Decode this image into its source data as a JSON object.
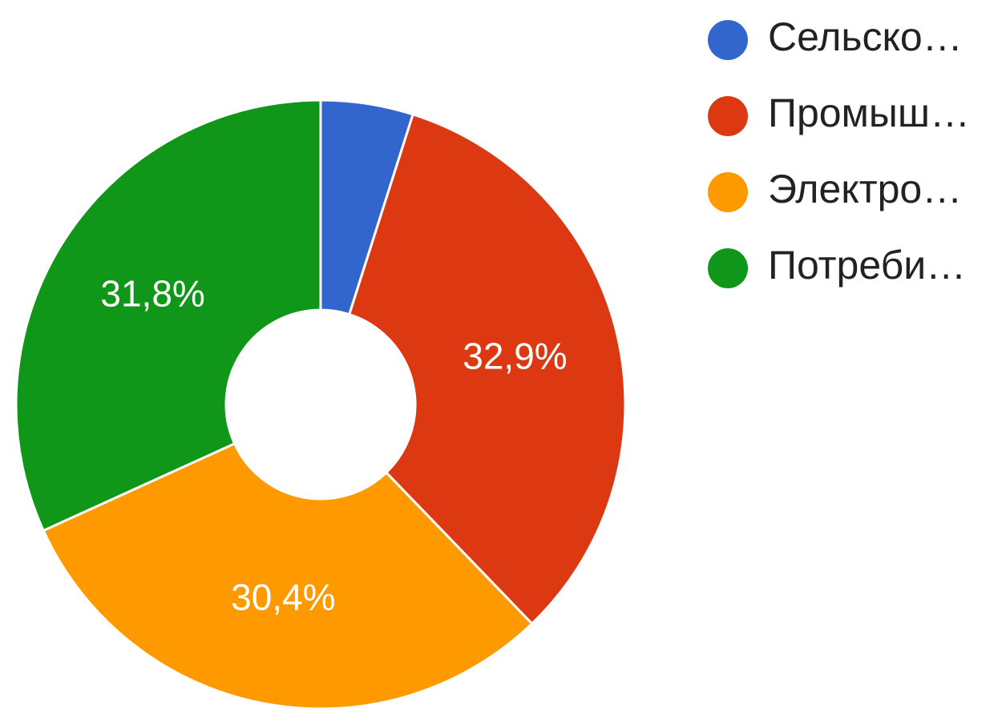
{
  "chart_data": {
    "type": "pie",
    "categories": [
      "Сельско…",
      "Промыш…",
      "Электро…",
      "Потреби…"
    ],
    "values": [
      4.9,
      32.9,
      30.4,
      31.8
    ],
    "value_labels": [
      null,
      "32,9%",
      "30,4%",
      "31,8%"
    ],
    "colors": [
      "#3366cc",
      "#dc3912",
      "#ff9900",
      "#109618"
    ],
    "legend": "right"
  }
}
